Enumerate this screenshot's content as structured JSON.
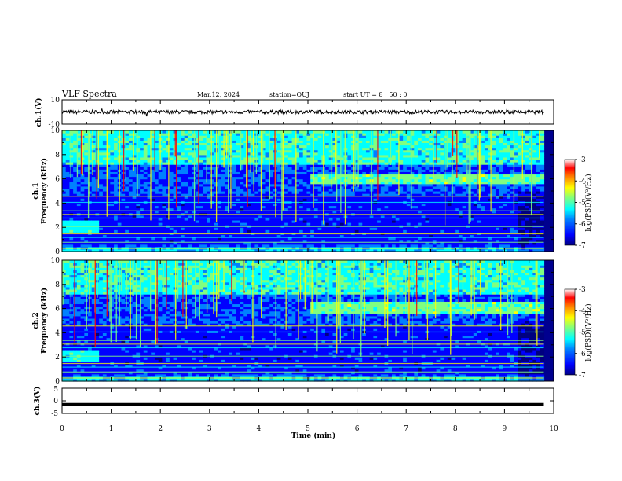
{
  "header": {
    "title": "VLF Spectra",
    "date": "Mar.12, 2024",
    "station": "station=OUJ",
    "start": "start  UT =   8  : 50 : 0"
  },
  "chart_data": [
    {
      "type": "line",
      "panel": "ch1-waveform",
      "ylabel": "ch.1(V)",
      "ylim": [
        -10,
        10
      ],
      "yticks": [
        "10",
        "-10"
      ],
      "xlim": [
        0,
        10
      ],
      "series_color": "#000000",
      "baseline_v": 0,
      "amplitude_v": 1.5
    },
    {
      "type": "heatmap",
      "panel": "ch1-spectrogram",
      "ylabel": "ch.1\nFrequency (kHz)",
      "ylim": [
        0,
        10
      ],
      "yticks": [
        "0",
        "2",
        "4",
        "6",
        "8",
        "10"
      ],
      "xlim": [
        0,
        10
      ],
      "data_end_min": 9.8,
      "colorbar": {
        "label": "log(PSD)(V²/Hz)",
        "range": [
          -7,
          -3
        ],
        "ticks": [
          "-3",
          "-4",
          "-5",
          "-6",
          "-7"
        ]
      },
      "enhanced_band_khz": [
        5.5,
        6.2
      ],
      "enhanced_band_start_min": 5.0
    },
    {
      "type": "heatmap",
      "panel": "ch2-spectrogram",
      "ylabel": "ch.2\nFrequency (kHz)",
      "ylim": [
        0,
        10
      ],
      "yticks": [
        "0",
        "2",
        "4",
        "6",
        "8",
        "10"
      ],
      "xlim": [
        0,
        10
      ],
      "data_end_min": 9.8,
      "colorbar": {
        "label": "log(PSD)(V²/Hz)",
        "range": [
          -7,
          -3
        ],
        "ticks": [
          "-3",
          "-4",
          "-5",
          "-6",
          "-7"
        ]
      },
      "enhanced_band_khz": [
        5.6,
        6.4
      ],
      "enhanced_band_start_min": 5.0
    },
    {
      "type": "line",
      "panel": "ch3-waveform",
      "ylabel": "ch.3(V)",
      "ylim": [
        -5,
        5
      ],
      "yticks": [
        "5",
        "0",
        "-5"
      ],
      "xlim": [
        0,
        10
      ],
      "series_color": "#000000",
      "baseline_v": -1.5,
      "amplitude_v": 0.2
    }
  ],
  "xaxis": {
    "label": "Time (min)",
    "ticks": [
      "0",
      "1",
      "2",
      "3",
      "4",
      "5",
      "6",
      "7",
      "8",
      "9",
      "10"
    ]
  },
  "colors": {
    "colormap": [
      "#00007f",
      "#0000ff",
      "#0080ff",
      "#00ffff",
      "#80ff80",
      "#ffff00",
      "#ff8000",
      "#ff0000",
      "#7f0000"
    ]
  }
}
